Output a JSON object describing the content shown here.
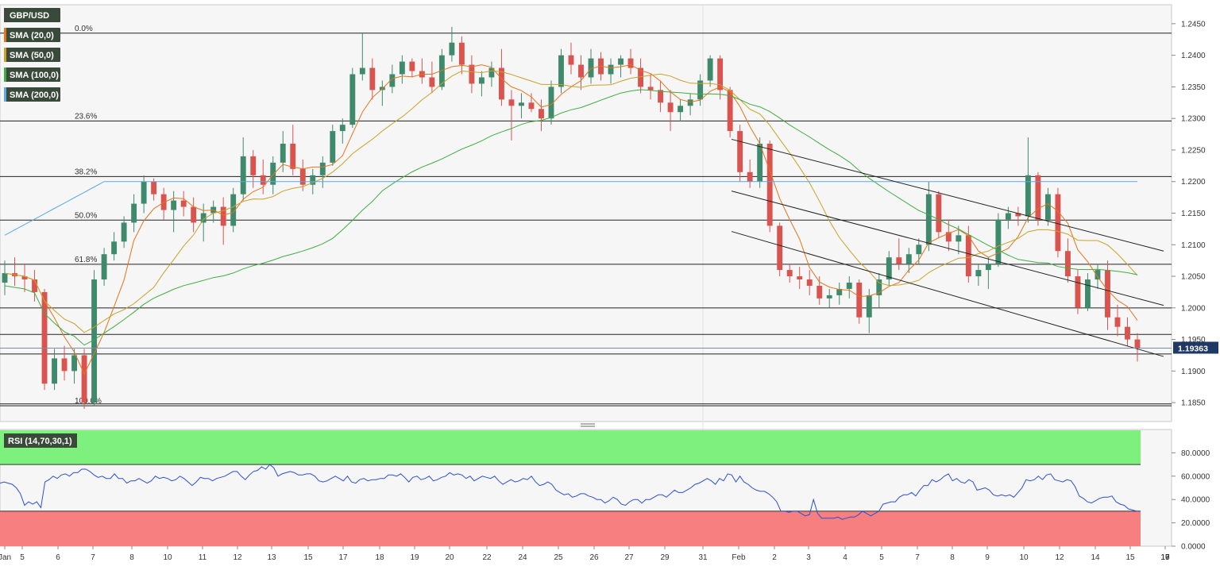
{
  "chart_data": [
    {
      "type": "candlestick",
      "title": "GBP/USD",
      "ylim": [
        1.182,
        1.248
      ],
      "y_ticks": [
        "1.2450",
        "1.2400",
        "1.2350",
        "1.2300",
        "1.2250",
        "1.2200",
        "1.2150",
        "1.2100",
        "1.2050",
        "1.2000",
        "1.1950",
        "1.1900",
        "1.1850"
      ],
      "x_ticks": [
        "Jan",
        "5",
        "6",
        "7",
        "8",
        "10",
        "11",
        "12",
        "13",
        "15",
        "17",
        "18",
        "19",
        "20",
        "22",
        "24",
        "25",
        "26",
        "27",
        "29",
        "31",
        "Feb",
        "2",
        "3",
        "4",
        "5",
        "7",
        "8",
        "9",
        "10",
        "12",
        "14",
        "15",
        "16",
        "17",
        "19"
      ],
      "current_price": "1.19363",
      "legend": [
        {
          "label": "GBP/USD",
          "color": "#444444"
        },
        {
          "label": "SMA (20,0)",
          "color": "#e8731a"
        },
        {
          "label": "SMA (50,0)",
          "color": "#c9a227"
        },
        {
          "label": "SMA (100,0)",
          "color": "#3fae3f"
        },
        {
          "label": "SMA (200,0)",
          "color": "#5aa9e6"
        }
      ],
      "fibonacci": [
        {
          "label": "0.0%",
          "value": 1.2435
        },
        {
          "label": "23.6%",
          "value": 1.2296
        },
        {
          "label": "38.2%",
          "value": 1.2208
        },
        {
          "label": "50.0%",
          "value": 1.2139
        },
        {
          "label": "61.8%",
          "value": 1.2069
        },
        {
          "label": "100.0%",
          "value": 1.1845
        }
      ],
      "horizontal_levels": [
        1.2,
        1.1958,
        1.1927,
        1.1848
      ],
      "channel_lines": [
        {
          "from": [
            0,
            1.2267
          ],
          "to": [
            1,
            1.209
          ]
        },
        {
          "from": [
            0,
            1.2185
          ],
          "to": [
            1,
            1.2004
          ]
        },
        {
          "from": [
            0,
            1.2121
          ],
          "to": [
            1,
            1.1923
          ]
        }
      ],
      "candles_ohlc": [
        [
          1.204,
          1.2075,
          1.202,
          1.2055
        ],
        [
          1.2055,
          1.208,
          1.2035,
          1.205
        ],
        [
          1.205,
          1.207,
          1.2025,
          1.2045
        ],
        [
          1.2045,
          1.206,
          1.201,
          1.2025
        ],
        [
          1.2025,
          1.203,
          1.187,
          1.188
        ],
        [
          1.188,
          1.1935,
          1.187,
          1.192
        ],
        [
          1.192,
          1.194,
          1.1885,
          1.19
        ],
        [
          1.19,
          1.1935,
          1.188,
          1.1925
        ],
        [
          1.1925,
          1.1935,
          1.184,
          1.185
        ],
        [
          1.185,
          1.206,
          1.1845,
          1.2045
        ],
        [
          1.2045,
          1.2095,
          1.2035,
          1.2085
        ],
        [
          1.2085,
          1.212,
          1.2075,
          1.2105
        ],
        [
          1.2105,
          1.2145,
          1.2095,
          1.2135
        ],
        [
          1.2135,
          1.218,
          1.212,
          1.2165
        ],
        [
          1.2165,
          1.221,
          1.215,
          1.22
        ],
        [
          1.22,
          1.2205,
          1.217,
          1.218
        ],
        [
          1.218,
          1.219,
          1.214,
          1.2155
        ],
        [
          1.2155,
          1.2185,
          1.212,
          1.217
        ],
        [
          1.217,
          1.2185,
          1.2145,
          1.216
        ],
        [
          1.216,
          1.2175,
          1.212,
          1.2135
        ],
        [
          1.2135,
          1.2165,
          1.2105,
          1.215
        ],
        [
          1.215,
          1.217,
          1.2135,
          1.216
        ],
        [
          1.216,
          1.2175,
          1.21,
          1.213
        ],
        [
          1.213,
          1.219,
          1.212,
          1.218
        ],
        [
          1.218,
          1.227,
          1.217,
          1.224
        ],
        [
          1.224,
          1.225,
          1.219,
          1.221
        ],
        [
          1.221,
          1.2235,
          1.218,
          1.2195
        ],
        [
          1.2195,
          1.224,
          1.218,
          1.223
        ],
        [
          1.223,
          1.228,
          1.2215,
          1.226
        ],
        [
          1.226,
          1.229,
          1.221,
          1.222
        ],
        [
          1.222,
          1.2235,
          1.2185,
          1.2195
        ],
        [
          1.2195,
          1.222,
          1.218,
          1.221
        ],
        [
          1.221,
          1.224,
          1.219,
          1.223
        ],
        [
          1.223,
          1.229,
          1.2225,
          1.228
        ],
        [
          1.228,
          1.23,
          1.226,
          1.229
        ],
        [
          1.229,
          1.238,
          1.2285,
          1.237
        ],
        [
          1.237,
          1.2435,
          1.236,
          1.238
        ],
        [
          1.238,
          1.2395,
          1.233,
          1.2345
        ],
        [
          1.2345,
          1.236,
          1.232,
          1.235
        ],
        [
          1.235,
          1.2385,
          1.234,
          1.237
        ],
        [
          1.237,
          1.24,
          1.2355,
          1.239
        ],
        [
          1.239,
          1.2395,
          1.2365,
          1.2375
        ],
        [
          1.2375,
          1.2395,
          1.2355,
          1.2365
        ],
        [
          1.2365,
          1.239,
          1.234,
          1.235
        ],
        [
          1.235,
          1.241,
          1.2345,
          1.24
        ],
        [
          1.24,
          1.2445,
          1.239,
          1.242
        ],
        [
          1.242,
          1.243,
          1.237,
          1.2385
        ],
        [
          1.2385,
          1.24,
          1.234,
          1.2355
        ],
        [
          1.2355,
          1.2375,
          1.2335,
          1.2365
        ],
        [
          1.2365,
          1.239,
          1.235,
          1.238
        ],
        [
          1.238,
          1.241,
          1.232,
          1.233
        ],
        [
          1.233,
          1.2345,
          1.2265,
          1.232
        ],
        [
          1.232,
          1.234,
          1.23,
          1.2325
        ],
        [
          1.2325,
          1.234,
          1.231,
          1.2315
        ],
        [
          1.2315,
          1.233,
          1.228,
          1.23
        ],
        [
          1.23,
          1.236,
          1.229,
          1.235
        ],
        [
          1.235,
          1.241,
          1.234,
          1.24
        ],
        [
          1.24,
          1.242,
          1.237,
          1.2385
        ],
        [
          1.2385,
          1.24,
          1.2345,
          1.2365
        ],
        [
          1.2365,
          1.241,
          1.2355,
          1.2395
        ],
        [
          1.2395,
          1.2405,
          1.236,
          1.237
        ],
        [
          1.237,
          1.2395,
          1.2355,
          1.2385
        ],
        [
          1.2385,
          1.24,
          1.2365,
          1.2395
        ],
        [
          1.2395,
          1.241,
          1.237,
          1.238
        ],
        [
          1.238,
          1.2395,
          1.234,
          1.235
        ],
        [
          1.235,
          1.237,
          1.233,
          1.2345
        ],
        [
          1.2345,
          1.236,
          1.231,
          1.2325
        ],
        [
          1.2325,
          1.2345,
          1.228,
          1.231
        ],
        [
          1.231,
          1.233,
          1.2295,
          1.232
        ],
        [
          1.232,
          1.234,
          1.2305,
          1.233
        ],
        [
          1.233,
          1.237,
          1.232,
          1.236
        ],
        [
          1.236,
          1.24,
          1.235,
          1.2395
        ],
        [
          1.2395,
          1.24,
          1.233,
          1.2345
        ],
        [
          1.2345,
          1.235,
          1.227,
          1.228
        ],
        [
          1.228,
          1.229,
          1.22,
          1.2215
        ],
        [
          1.2215,
          1.2235,
          1.219,
          1.22
        ],
        [
          1.22,
          1.227,
          1.219,
          1.226
        ],
        [
          1.226,
          1.2265,
          1.212,
          1.213
        ],
        [
          1.213,
          1.2135,
          1.205,
          1.206
        ],
        [
          1.206,
          1.207,
          1.204,
          1.205
        ],
        [
          1.205,
          1.2065,
          1.203,
          1.2045
        ],
        [
          1.2045,
          1.206,
          1.202,
          1.2035
        ],
        [
          1.2035,
          1.205,
          1.2005,
          1.2015
        ],
        [
          1.2015,
          1.203,
          1.2,
          1.202
        ],
        [
          1.202,
          1.204,
          1.2005,
          1.203
        ],
        [
          1.203,
          1.205,
          1.2015,
          1.204
        ],
        [
          1.204,
          1.2045,
          1.1975,
          1.1985
        ],
        [
          1.1985,
          1.203,
          1.196,
          1.202
        ],
        [
          1.202,
          1.2055,
          1.2,
          1.2045
        ],
        [
          1.2045,
          1.209,
          1.2035,
          1.208
        ],
        [
          1.208,
          1.211,
          1.206,
          1.207
        ],
        [
          1.207,
          1.2095,
          1.2055,
          1.2085
        ],
        [
          1.2085,
          1.211,
          1.207,
          1.21
        ],
        [
          1.21,
          1.22,
          1.209,
          1.218
        ],
        [
          1.218,
          1.2185,
          1.211,
          1.212
        ],
        [
          1.212,
          1.214,
          1.209,
          1.2105
        ],
        [
          1.2105,
          1.213,
          1.2085,
          1.2115
        ],
        [
          1.2115,
          1.213,
          1.204,
          1.205
        ],
        [
          1.205,
          1.207,
          1.2035,
          1.206
        ],
        [
          1.206,
          1.208,
          1.203,
          1.207
        ],
        [
          1.207,
          1.215,
          1.2065,
          1.214
        ],
        [
          1.214,
          1.216,
          1.2125,
          1.215
        ],
        [
          1.215,
          1.216,
          1.213,
          1.2145
        ],
        [
          1.2145,
          1.227,
          1.2135,
          1.221
        ],
        [
          1.221,
          1.2215,
          1.213,
          1.214
        ],
        [
          1.214,
          1.219,
          1.213,
          1.218
        ],
        [
          1.218,
          1.219,
          1.208,
          1.209
        ],
        [
          1.209,
          1.211,
          1.204,
          1.205
        ],
        [
          1.205,
          1.206,
          1.199,
          1.2
        ],
        [
          1.2,
          1.2055,
          1.1995,
          1.2045
        ],
        [
          1.2045,
          1.207,
          1.203,
          1.206
        ],
        [
          1.206,
          1.2075,
          1.1965,
          1.1985
        ],
        [
          1.1985,
          1.2005,
          1.1955,
          1.197
        ],
        [
          1.197,
          1.1985,
          1.194,
          1.195
        ],
        [
          1.195,
          1.196,
          1.1915,
          1.1936
        ]
      ]
    },
    {
      "type": "line",
      "title": "RSI (14,70,30,1)",
      "ylim": [
        0,
        100
      ],
      "y_ticks": [
        "80.0000",
        "60.0000",
        "40.0000",
        "20.0000",
        "0.0000"
      ],
      "overbought": 70,
      "oversold": 30,
      "series": [
        {
          "name": "RSI",
          "values": [
            54,
            55,
            54,
            53,
            50,
            45,
            35,
            38,
            36,
            38,
            33,
            55,
            57,
            60,
            58,
            61,
            62,
            60,
            63,
            63,
            66,
            66,
            64,
            61,
            59,
            60,
            58,
            58,
            62,
            58,
            58,
            54,
            56,
            56,
            58,
            56,
            54,
            56,
            60,
            58,
            59,
            58,
            56,
            57,
            60,
            58,
            55,
            52,
            55,
            59,
            58,
            58,
            56,
            58,
            59,
            60,
            62,
            64,
            64,
            60,
            57,
            61,
            64,
            65,
            68,
            66,
            70,
            67,
            60,
            62,
            63,
            64,
            63,
            61,
            61,
            62,
            62,
            60,
            56,
            55,
            56,
            58,
            60,
            58,
            56,
            60,
            55,
            54,
            57,
            58,
            56,
            57,
            57,
            58,
            58,
            61,
            61,
            60,
            62,
            59,
            55,
            59,
            60,
            57,
            58,
            60,
            56,
            57,
            59,
            60,
            63,
            61,
            62,
            61,
            58,
            60,
            56,
            58,
            60,
            59,
            58,
            60,
            56,
            53,
            55,
            57,
            55,
            56,
            58,
            57,
            60,
            55,
            52,
            53,
            55,
            53,
            48,
            46,
            44,
            45,
            42,
            43,
            45,
            45,
            43,
            42,
            40,
            40,
            37,
            39,
            42,
            40,
            36,
            35,
            38,
            40,
            40,
            37,
            40,
            40,
            42,
            44,
            44,
            42,
            45,
            48,
            46,
            46,
            48,
            50,
            53,
            54,
            56,
            58,
            56,
            53,
            58,
            56,
            62,
            61,
            55,
            60,
            55,
            53,
            50,
            48,
            47,
            47,
            45,
            42,
            38,
            30,
            30,
            29,
            30,
            30,
            28,
            26,
            27,
            40,
            28,
            24,
            24,
            24,
            24,
            25,
            23,
            24,
            25,
            25,
            27,
            30,
            28,
            26,
            28,
            30,
            36,
            37,
            38,
            38,
            42,
            44,
            44,
            46,
            43,
            48,
            52,
            52,
            57,
            55,
            57,
            60,
            62,
            56,
            58,
            55,
            54,
            57,
            55,
            48,
            49,
            50,
            48,
            44,
            43,
            44,
            43,
            44,
            42,
            46,
            50,
            57,
            56,
            57,
            60,
            57,
            61,
            62,
            57,
            56,
            55,
            57,
            56,
            51,
            43,
            41,
            38,
            37,
            39,
            41,
            42,
            42,
            43,
            38,
            36,
            35,
            32,
            31,
            30,
            30
          ]
        }
      ]
    }
  ]
}
